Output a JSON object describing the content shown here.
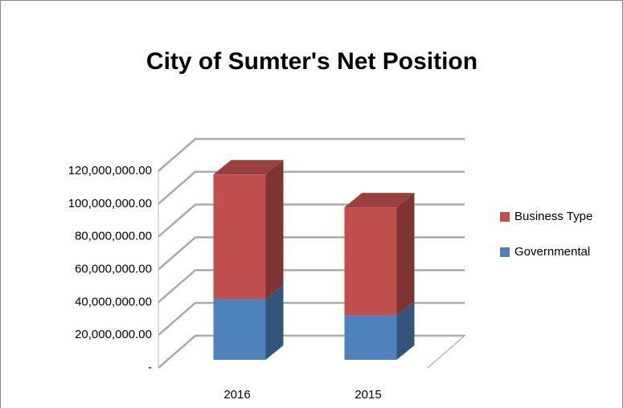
{
  "chart_data": {
    "type": "bar3d_stacked",
    "title": "City of Sumter's Net Position",
    "categories": [
      "2016",
      "2015"
    ],
    "series": [
      {
        "name": "Governmental",
        "color": "#4f81bd",
        "values": [
          37000000,
          27000000
        ]
      },
      {
        "name": "Business Type",
        "color": "#c0504d",
        "values": [
          76000000,
          66000000
        ]
      }
    ],
    "ylim": [
      0,
      120000000
    ],
    "yticks": [
      {
        "value": 0,
        "label": "-"
      },
      {
        "value": 20000000,
        "label": "20,000,000.00"
      },
      {
        "value": 40000000,
        "label": "40,000,000.00"
      },
      {
        "value": 60000000,
        "label": "60,000,000.00"
      },
      {
        "value": 80000000,
        "label": "80,000,000.00"
      },
      {
        "value": 100000000,
        "label": "100,000,000.00"
      },
      {
        "value": 120000000,
        "label": "120,000,000.00"
      }
    ],
    "grid": true,
    "legend": "right"
  }
}
